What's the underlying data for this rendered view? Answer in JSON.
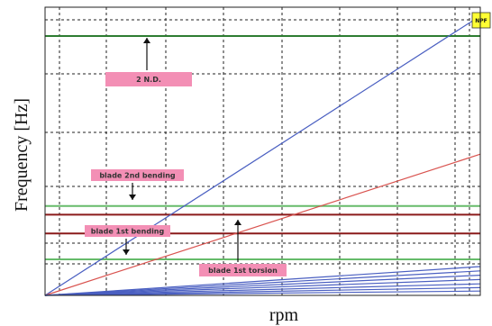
{
  "chart_data": {
    "type": "line",
    "xlabel": "rpm",
    "ylabel": "Frequency [Hz]",
    "xlim": [
      0,
      100
    ],
    "ylim": [
      0,
      100
    ],
    "grid": true,
    "horizontal_lines": [
      {
        "name": "2 N.D.",
        "y": 90,
        "color": "#2e7d32"
      },
      {
        "name": "blade 2nd bending",
        "y": 31,
        "color": "#66bb6a"
      },
      {
        "name": "blade 1st torsion",
        "y": 28,
        "color": "#8b1a1a"
      },
      {
        "name": "blade 1st bending",
        "y": 21.5,
        "color": "#8b1a1a"
      },
      {
        "name": "",
        "y": 12.5,
        "color": "#66bb6a"
      }
    ],
    "engine_orders": [
      {
        "x": [
          0,
          100
        ],
        "y": [
          0,
          97
        ],
        "color": "#4a5fc1"
      },
      {
        "x": [
          0,
          100
        ],
        "y": [
          0,
          49
        ],
        "color": "#d9534f"
      },
      {
        "x": [
          0,
          100
        ],
        "y": [
          0,
          10
        ],
        "color": "#4a5fc1"
      },
      {
        "x": [
          0,
          100
        ],
        "y": [
          0,
          8.5
        ],
        "color": "#4a5fc1"
      },
      {
        "x": [
          0,
          100
        ],
        "y": [
          0,
          7
        ],
        "color": "#4a5fc1"
      },
      {
        "x": [
          0,
          100
        ],
        "y": [
          0,
          5.5
        ],
        "color": "#4a5fc1"
      },
      {
        "x": [
          0,
          100
        ],
        "y": [
          0,
          4
        ],
        "color": "#4a5fc1"
      },
      {
        "x": [
          0,
          100
        ],
        "y": [
          0,
          2.7
        ],
        "color": "#4a5fc1"
      },
      {
        "x": [
          0,
          100
        ],
        "y": [
          0,
          1.5
        ],
        "color": "#4a5fc1"
      }
    ],
    "annotations": [
      {
        "text": "2 N.D.",
        "arrow": "up"
      },
      {
        "text": "blade 2nd bending",
        "arrow": "down"
      },
      {
        "text": "blade 1st bending",
        "arrow": "down"
      },
      {
        "text": "blade 1st torsion",
        "arrow": "up"
      }
    ],
    "badge": "NPF"
  },
  "colors": {
    "annotation_fill": "#f38fb5",
    "badge_fill": "#ffff33",
    "grid": "#222222"
  }
}
